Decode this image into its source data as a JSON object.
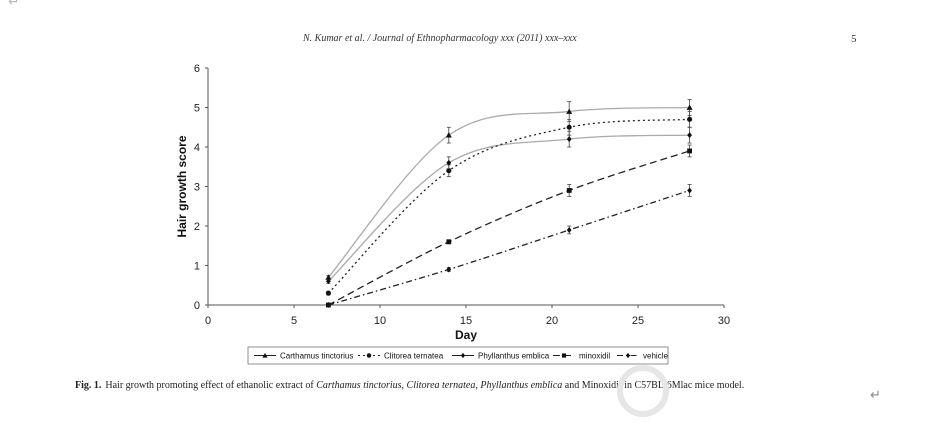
{
  "header": {
    "running_head": "N. Kumar et al. / Journal of Ethnopharmacology xxx (2011) xxx–xxx",
    "page_number": "5"
  },
  "chart_data": {
    "type": "line",
    "xlabel": "Day",
    "ylabel": "Hair growth score",
    "xlim": [
      0,
      30
    ],
    "ylim": [
      0,
      6
    ],
    "x_ticks": [
      0,
      5,
      10,
      15,
      20,
      25,
      30
    ],
    "y_ticks": [
      0,
      1,
      2,
      3,
      4,
      5,
      6
    ],
    "grid": false,
    "legend_position": "bottom",
    "series": [
      {
        "name": "Carthamus tinctorius",
        "marker": "triangle",
        "color": "#111111",
        "x": [
          7,
          14,
          21,
          28
        ],
        "y": [
          0.7,
          4.3,
          4.9,
          5.0
        ],
        "err": [
          0.05,
          0.2,
          0.25,
          0.2
        ]
      },
      {
        "name": "Clitorea ternatea",
        "marker": "circle",
        "color": "#111111",
        "x": [
          7,
          14,
          21,
          28
        ],
        "y": [
          0.3,
          3.4,
          4.5,
          4.7
        ],
        "err": [
          0.05,
          0.15,
          0.2,
          0.2
        ]
      },
      {
        "name": "Phyllanthus emblica",
        "marker": "diamond",
        "color": "#111111",
        "x": [
          7,
          14,
          21,
          28
        ],
        "y": [
          0.6,
          3.6,
          4.2,
          4.3
        ],
        "err": [
          0.05,
          0.15,
          0.2,
          0.2
        ]
      },
      {
        "name": "minoxidil",
        "marker": "square",
        "color": "#111111",
        "x": [
          7,
          14,
          21,
          28
        ],
        "y": [
          0.0,
          1.6,
          2.9,
          3.9
        ],
        "err": [
          0.02,
          0.05,
          0.15,
          0.15
        ]
      },
      {
        "name": "vehicle",
        "marker": "diamond",
        "color": "#111111",
        "x": [
          7,
          14,
          21,
          28
        ],
        "y": [
          0.0,
          0.9,
          1.9,
          2.9
        ],
        "err": [
          0.02,
          0.05,
          0.1,
          0.15
        ]
      }
    ]
  },
  "caption": {
    "label": "Fig. 1.",
    "text_1": "Hair growth promoting effect of ethanolic extract of ",
    "species_1": "Carthamus tinctorius",
    "sep_1": ", ",
    "species_2": "Clitorea ternatea",
    "sep_2": ", ",
    "species_3": "Phyllanthus emblica",
    "text_2": " and Minoxidil in C57BL/6Mlac mice model."
  }
}
